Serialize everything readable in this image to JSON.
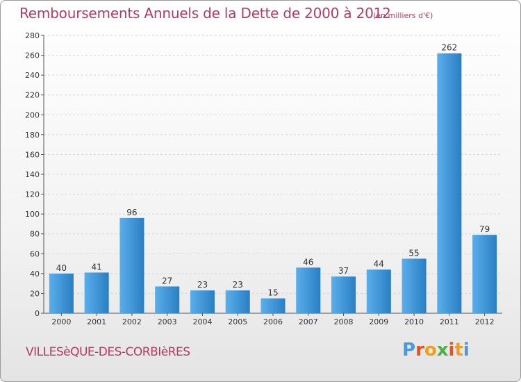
{
  "header": {
    "title": "Remboursements Annuels de la Dette de 2000 à 2012",
    "subtitle": "(en milliers d'€)"
  },
  "footer": {
    "commune": "VILLESèQUE-DES-CORBIèRES",
    "logo_letters": [
      "P",
      "r",
      "o",
      "x",
      "i",
      "t",
      "i"
    ],
    "logo_colors": [
      "#4a9ad8",
      "#e0532a",
      "#f0a020",
      "#4ab04a",
      "#e0532a",
      "#f0a020",
      "#4a9ad8"
    ]
  },
  "chart_data": {
    "type": "bar",
    "title": "Remboursements Annuels de la Dette de 2000 à 2012",
    "xlabel": "",
    "ylabel": "",
    "categories": [
      "2000",
      "2001",
      "2002",
      "2003",
      "2004",
      "2005",
      "2006",
      "2007",
      "2008",
      "2009",
      "2010",
      "2011",
      "2012"
    ],
    "values": [
      40,
      41,
      96,
      27,
      23,
      23,
      15,
      46,
      37,
      44,
      55,
      262,
      79
    ],
    "value_labels": [
      "40",
      "41",
      "96",
      "27",
      "23",
      "23",
      "15",
      "46",
      "37",
      "44",
      "55",
      "262",
      "79"
    ],
    "ylim": [
      0,
      280
    ],
    "yticks": [
      0,
      20,
      40,
      60,
      80,
      100,
      120,
      140,
      160,
      180,
      200,
      220,
      240,
      260,
      280
    ],
    "ytick_labels": [
      "0",
      "20",
      "40",
      "60",
      "80",
      "100",
      "120",
      "140",
      "160",
      "180",
      "200",
      "220",
      "240",
      "260",
      "280"
    ],
    "grid": true,
    "bar_color_light": "#5aaeea",
    "bar_color_dark": "#2a7fc4"
  }
}
